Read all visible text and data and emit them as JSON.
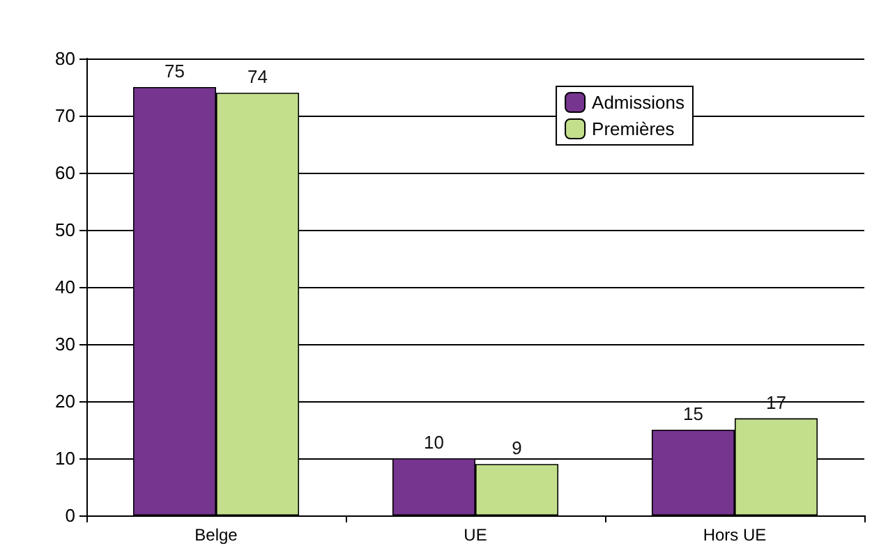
{
  "chart_data": {
    "type": "bar",
    "categories": [
      "Belge",
      "UE",
      "Hors UE"
    ],
    "series": [
      {
        "name": "Admissions",
        "color": "#76358f",
        "values": [
          75,
          10,
          15
        ]
      },
      {
        "name": "Premières",
        "color": "#c3df8c",
        "values": [
          74,
          9,
          17
        ]
      }
    ],
    "ylim": [
      0,
      80
    ],
    "yticks": [
      0,
      10,
      20,
      30,
      40,
      50,
      60,
      70,
      80
    ],
    "grid": "y",
    "legend": "top right",
    "data_labels": true
  }
}
